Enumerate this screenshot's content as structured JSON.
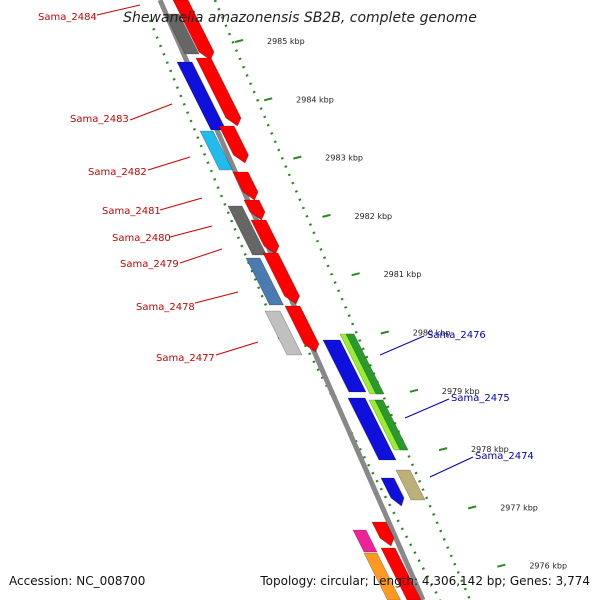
{
  "title": "Shewanella amazonensis SB2B, complete genome",
  "footer": {
    "accession": "Accession: NC_008700",
    "summary": "Topology: circular; Length: 4,306,142 bp; Genes: 3,774"
  },
  "ticks": [
    "2985 kbp",
    "2984 kbp",
    "2983 kbp",
    "2982 kbp",
    "2981 kbp",
    "2980 kbp",
    "2979 kbp",
    "2978 kbp",
    "2977 kbp",
    "2976 kbp"
  ],
  "genes_left": [
    "Sama_2484",
    "Sama_2483",
    "Sama_2482",
    "Sama_2481",
    "Sama_2480",
    "Sama_2479",
    "Sama_2478",
    "Sama_2477"
  ],
  "genes_right": [
    "Sama_2476",
    "Sama_2475",
    "Sama_2474"
  ],
  "colors": {
    "backbone": "#888888",
    "ruler": "#2a8a1f",
    "cds": "#ff0000",
    "left_labels": "#cc0000",
    "right_labels": "#0000bb",
    "blue": "#1010dd",
    "cyan": "#22bbee",
    "dark_gray": "#666666",
    "steel_blue": "#4a7ab0",
    "light_gray": "#c0c0c0",
    "green": "#2a9a2a",
    "light_green": "#99ee33",
    "khaki": "#bbb077",
    "magenta": "#ee2299",
    "orange": "#ff9922"
  }
}
